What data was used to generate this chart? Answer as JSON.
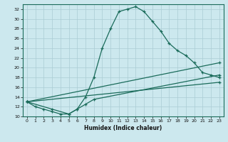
{
  "xlabel": "Humidex (Indice chaleur)",
  "background_color": "#cce8ee",
  "grid_color": "#aaccd4",
  "line_color": "#1a6b5a",
  "xlim": [
    -0.5,
    23.5
  ],
  "ylim": [
    10,
    33
  ],
  "yticks": [
    10,
    12,
    14,
    16,
    18,
    20,
    22,
    24,
    26,
    28,
    30,
    32
  ],
  "xticks": [
    0,
    1,
    2,
    3,
    4,
    5,
    6,
    7,
    8,
    9,
    10,
    11,
    12,
    13,
    14,
    15,
    16,
    17,
    18,
    19,
    20,
    21,
    22,
    23
  ],
  "series1_x": [
    0,
    1,
    2,
    3,
    4,
    5,
    6,
    7,
    8,
    9,
    10,
    11,
    12,
    13,
    14,
    15,
    16,
    17,
    18,
    19,
    20,
    21,
    22,
    23
  ],
  "series1_y": [
    13,
    12,
    11.5,
    11,
    10.5,
    10.5,
    11.5,
    14,
    18,
    24,
    28,
    31.5,
    32,
    32.5,
    31.5,
    29.5,
    27.5,
    25,
    23.5,
    22.5,
    21,
    19,
    18.5,
    18
  ],
  "series2_x": [
    0,
    23
  ],
  "series2_y": [
    13,
    21
  ],
  "series3_x": [
    0,
    23
  ],
  "series3_y": [
    13,
    17
  ],
  "series4_x": [
    0,
    3,
    5,
    6,
    7,
    8,
    23
  ],
  "series4_y": [
    13,
    11.5,
    10.5,
    11.5,
    12.5,
    13.5,
    18.5
  ]
}
